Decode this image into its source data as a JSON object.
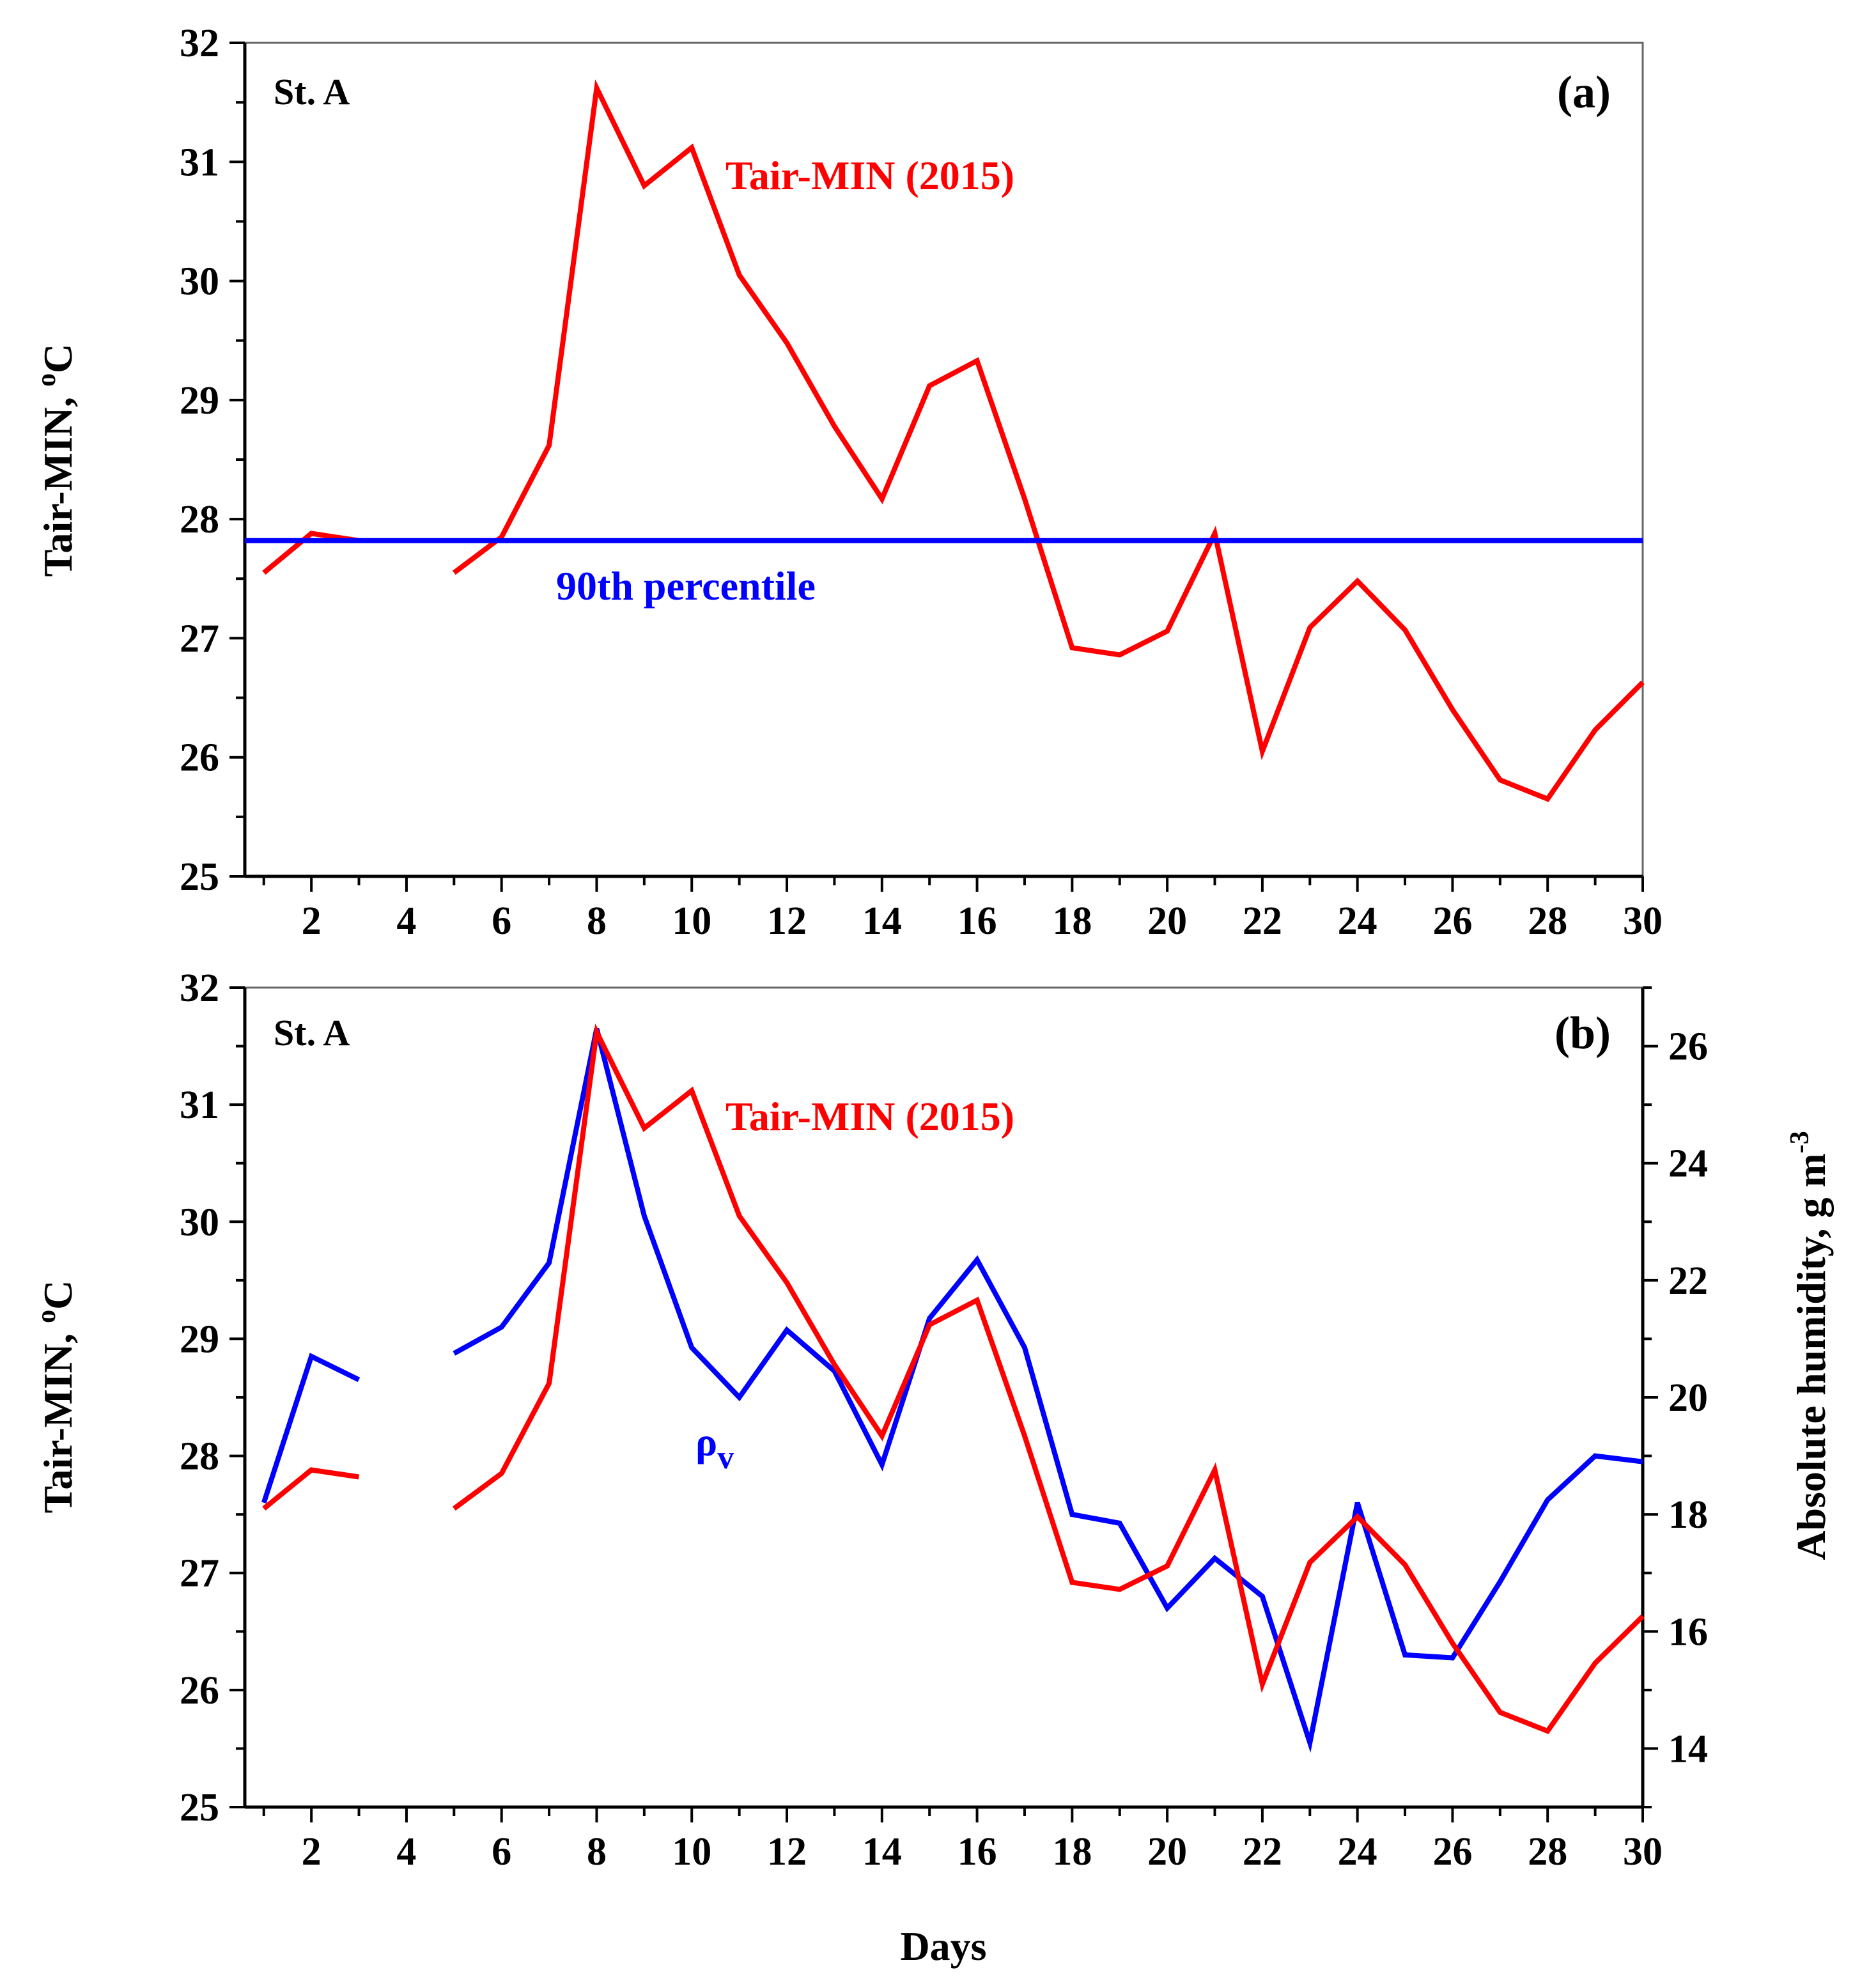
{
  "colors": {
    "temperature": "#ff0000",
    "humidity": "#0000ff",
    "percentile": "#0000ff",
    "axis": "#000000"
  },
  "chart_data": [
    {
      "type": "line",
      "panel_label": "(a)",
      "station": "St. A",
      "xlabel": "",
      "ylabel": "Tair-MIN, ",
      "ylabel_sup": "o",
      "ylabel_unit": "C",
      "xlim": [
        0.6,
        30
      ],
      "ylim": [
        25,
        32
      ],
      "xticks": [
        2,
        4,
        6,
        8,
        10,
        12,
        14,
        16,
        18,
        20,
        22,
        24,
        26,
        28,
        30
      ],
      "yticks": [
        25,
        26,
        27,
        28,
        29,
        30,
        31,
        32
      ],
      "series": [
        {
          "name": "Tair-MIN (2015)",
          "color": "#ff0000",
          "x": [
            1,
            2,
            3,
            4,
            5,
            6,
            7,
            8,
            9,
            10,
            11,
            12,
            13,
            14,
            15,
            16,
            17,
            18,
            19,
            20,
            21,
            22,
            23,
            24,
            25,
            26,
            27,
            28,
            29,
            30
          ],
          "values": [
            27.55,
            27.88,
            27.82,
            null,
            27.55,
            27.85,
            28.62,
            31.62,
            30.8,
            31.12,
            30.05,
            29.48,
            28.78,
            28.17,
            29.12,
            29.33,
            28.17,
            26.92,
            26.86,
            27.06,
            27.88,
            26.05,
            27.09,
            27.48,
            27.07,
            26.4,
            25.81,
            25.65,
            26.23,
            26.63
          ],
          "label": "Tair-MIN (2015)"
        },
        {
          "name": "90th percentile",
          "color": "#0000ff",
          "x": [
            0.6,
            30
          ],
          "values": [
            27.82,
            27.82
          ],
          "label": "90th percentile"
        }
      ]
    },
    {
      "type": "line",
      "panel_label": "(b)",
      "station": "St. A",
      "xlabel": "Days",
      "ylabel": "Tair-MIN, ",
      "ylabel_sup": "o",
      "ylabel_unit": "C",
      "y2label": "Absolute humidity, g m",
      "y2label_sup": "-3",
      "xlim": [
        0.6,
        30
      ],
      "ylim": [
        25,
        32
      ],
      "y2lim": [
        13,
        27
      ],
      "xticks": [
        2,
        4,
        6,
        8,
        10,
        12,
        14,
        16,
        18,
        20,
        22,
        24,
        26,
        28,
        30
      ],
      "yticks": [
        25,
        26,
        27,
        28,
        29,
        30,
        31,
        32
      ],
      "y2ticks": [
        14,
        16,
        18,
        20,
        22,
        24,
        26
      ],
      "series": [
        {
          "name": "Tair-MIN (2015)",
          "axis": "left",
          "color": "#ff0000",
          "x": [
            1,
            2,
            3,
            4,
            5,
            6,
            7,
            8,
            9,
            10,
            11,
            12,
            13,
            14,
            15,
            16,
            17,
            18,
            19,
            20,
            21,
            22,
            23,
            24,
            25,
            26,
            27,
            28,
            29,
            30
          ],
          "values": [
            27.55,
            27.88,
            27.82,
            null,
            27.55,
            27.85,
            28.62,
            31.62,
            30.8,
            31.12,
            30.05,
            29.48,
            28.78,
            28.17,
            29.12,
            29.33,
            28.17,
            26.92,
            26.86,
            27.06,
            27.88,
            26.05,
            27.09,
            27.48,
            27.07,
            26.4,
            25.81,
            25.65,
            26.23,
            26.63
          ],
          "label": "Tair-MIN (2015)"
        },
        {
          "name": "ρv",
          "axis": "right",
          "color": "#0000ff",
          "x": [
            1,
            2,
            3,
            4,
            5,
            6,
            7,
            8,
            9,
            10,
            11,
            12,
            13,
            14,
            15,
            16,
            17,
            18,
            19,
            20,
            21,
            22,
            23,
            24,
            25,
            26,
            27,
            28,
            29,
            30
          ],
          "values": [
            18.2,
            20.7,
            20.3,
            null,
            20.75,
            21.2,
            22.3,
            26.3,
            23.1,
            20.85,
            20.0,
            21.15,
            20.45,
            18.85,
            21.35,
            22.35,
            20.85,
            18.0,
            17.85,
            16.4,
            17.25,
            16.6,
            14.1,
            18.2,
            15.6,
            15.55,
            16.85,
            18.25,
            19.0,
            18.9
          ],
          "label": "ρ",
          "label_sub": "v"
        }
      ]
    }
  ]
}
